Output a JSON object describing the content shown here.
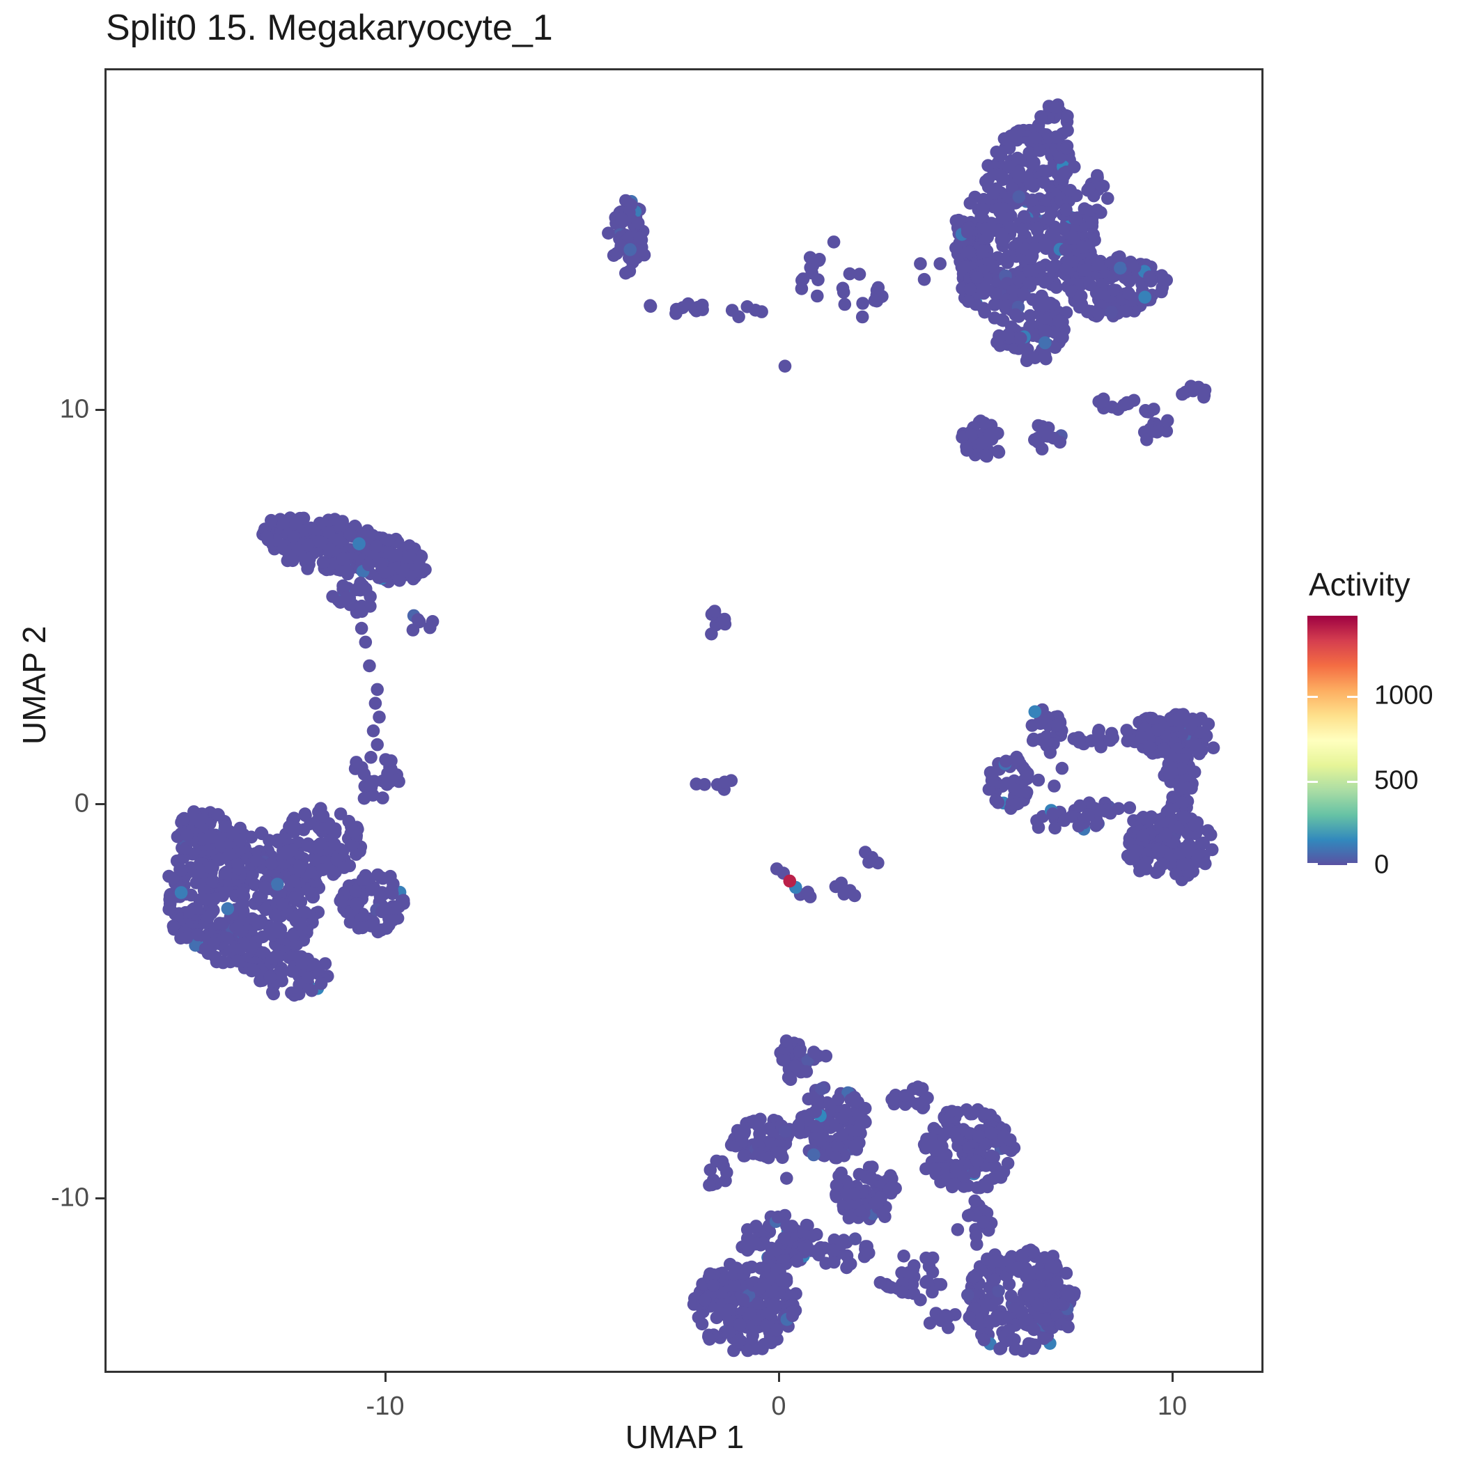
{
  "title": "Split0 15. Megakaryocyte_1",
  "axes": {
    "x_label": "UMAP 1",
    "y_label": "UMAP 2",
    "x_ticks": [
      -10,
      0,
      10
    ],
    "y_ticks": [
      -10,
      0,
      10
    ]
  },
  "legend": {
    "title": "Activity",
    "tick_values": [
      0,
      500,
      1000
    ],
    "domain": [
      0,
      1475
    ],
    "gradient_stops": [
      "#5A51A2",
      "#3288BD",
      "#66C2A5",
      "#ABDDA4",
      "#E6F598",
      "#FFFFBF",
      "#FEE08B",
      "#FDAE61",
      "#F46D43",
      "#D53E4F",
      "#9E0142"
    ]
  },
  "style_colors": {
    "panel_border": "#333333",
    "tick_label": "#4d4d4d",
    "text": "#1a1a1a",
    "default_point": "#5A51A2",
    "high_activity_point": "#A31048"
  },
  "chart_data": {
    "type": "scatter",
    "title": "Split0 15. Megakaryocyte_1",
    "xlabel": "UMAP 1",
    "ylabel": "UMAP 2",
    "xlim": [
      -17.1,
      12.3
    ],
    "ylim": [
      -14.4,
      18.7
    ],
    "x_ticks": [
      -10,
      0,
      10
    ],
    "y_ticks": [
      -10,
      0,
      10
    ],
    "grid": false,
    "legend_position": "right",
    "color_scale": {
      "name": "spectral_reversed",
      "domain": [
        0,
        1475
      ],
      "legend_ticks": [
        0,
        500,
        1000
      ],
      "label": "Activity"
    },
    "point_radius_px": 9.3,
    "seed": 20990,
    "tint_fraction": 0.03,
    "tint_max_activity": 150,
    "jitter": 0.1,
    "clusters": [
      {
        "name": "topright-upper-lobe",
        "cx": 6.3,
        "cy": 15.9,
        "rx": 1.15,
        "ry": 1.35,
        "n": 150,
        "rot": -20
      },
      {
        "name": "topright-mid-left",
        "cx": 5.55,
        "cy": 13.6,
        "rx": 1.05,
        "ry": 1.3,
        "n": 130,
        "rot": 0
      },
      {
        "name": "topright-mid-right",
        "cx": 7.2,
        "cy": 14.0,
        "rx": 1.05,
        "ry": 0.95,
        "n": 90,
        "rot": 0
      },
      {
        "name": "topright-right-lobe",
        "cx": 8.6,
        "cy": 13.1,
        "rx": 1.25,
        "ry": 0.8,
        "n": 120,
        "rot": 10
      },
      {
        "name": "topright-lower",
        "cx": 6.4,
        "cy": 12.1,
        "rx": 0.95,
        "ry": 0.85,
        "n": 80,
        "rot": 0
      },
      {
        "name": "topright-tip",
        "cx": 7.0,
        "cy": 17.1,
        "rx": 0.55,
        "ry": 0.65,
        "n": 25,
        "rot": 0
      },
      {
        "name": "topright-ne-spur",
        "cx": 7.7,
        "cy": 15.4,
        "rx": 0.65,
        "ry": 0.75,
        "n": 40,
        "rot": 0
      },
      {
        "name": "topright-left-edge",
        "cx": 5.0,
        "cy": 14.6,
        "rx": 0.5,
        "ry": 0.8,
        "n": 35,
        "rot": 0
      },
      {
        "name": "sat-triangle",
        "cx": 5.25,
        "cy": 9.2,
        "rx": 0.6,
        "ry": 0.5,
        "n": 35,
        "rot": 0
      },
      {
        "name": "sat-small",
        "cx": 6.8,
        "cy": 9.25,
        "rx": 0.38,
        "ry": 0.42,
        "n": 14,
        "rot": 0
      },
      {
        "name": "sat-chain",
        "cx": 8.5,
        "cy": 10.15,
        "rx": 0.5,
        "ry": 0.15,
        "n": 10,
        "rot": 0
      },
      {
        "name": "sat-clump",
        "cx": 9.5,
        "cy": 9.6,
        "rx": 0.45,
        "ry": 0.4,
        "n": 16,
        "rot": 0
      },
      {
        "name": "sat-far-chain",
        "cx": 10.6,
        "cy": 10.4,
        "rx": 0.5,
        "ry": 0.14,
        "n": 9,
        "rot": -8
      },
      {
        "name": "topmid-blob",
        "cx": -3.85,
        "cy": 14.4,
        "rx": 0.5,
        "ry": 1.0,
        "n": 55,
        "rot": 0
      },
      {
        "name": "topmid-chain",
        "cx": -2.55,
        "cy": 12.6,
        "rx": 0.8,
        "ry": 0.13,
        "n": 11,
        "rot": 0
      },
      {
        "name": "topmid-pair",
        "cx": -0.85,
        "cy": 12.5,
        "rx": 0.38,
        "ry": 0.22,
        "n": 5,
        "rot": 0
      },
      {
        "name": "topmid-right1",
        "cx": 0.9,
        "cy": 13.3,
        "rx": 0.55,
        "ry": 0.6,
        "n": 11,
        "rot": 0
      },
      {
        "name": "topmid-right2",
        "cx": 2.0,
        "cy": 12.9,
        "rx": 0.65,
        "ry": 0.6,
        "n": 13,
        "rot": 0
      },
      {
        "name": "topleft-ellipse",
        "cx": -11.05,
        "cy": 6.45,
        "rx": 2.15,
        "ry": 0.7,
        "n": 260,
        "rot": -12
      },
      {
        "name": "topleft-tail",
        "cx": -10.85,
        "cy": 5.2,
        "rx": 0.5,
        "ry": 0.45,
        "n": 25,
        "rot": 0
      },
      {
        "name": "topleft-pair",
        "cx": -9.2,
        "cy": 4.55,
        "rx": 0.4,
        "ry": 0.28,
        "n": 6,
        "rot": 0
      },
      {
        "name": "neck-clump",
        "cx": -10.25,
        "cy": 0.7,
        "rx": 0.6,
        "ry": 0.6,
        "n": 30,
        "rot": 0
      },
      {
        "name": "botleft-main",
        "cx": -13.6,
        "cy": -2.4,
        "rx": 1.95,
        "ry": 1.75,
        "n": 420,
        "rot": 0
      },
      {
        "name": "botleft-ne",
        "cx": -11.6,
        "cy": -1.0,
        "rx": 1.05,
        "ry": 0.85,
        "n": 90,
        "rot": 0
      },
      {
        "name": "botleft-east",
        "cx": -10.3,
        "cy": -2.5,
        "rx": 0.85,
        "ry": 0.75,
        "n": 80,
        "rot": 0
      },
      {
        "name": "botleft-nw",
        "cx": -14.5,
        "cy": -0.7,
        "rx": 0.85,
        "ry": 0.55,
        "n": 50,
        "rot": 0
      },
      {
        "name": "botleft-south",
        "cx": -12.4,
        "cy": -4.35,
        "rx": 1.05,
        "ry": 0.55,
        "n": 60,
        "rot": 0
      },
      {
        "name": "center-clump",
        "cx": -1.6,
        "cy": 4.6,
        "rx": 0.3,
        "ry": 0.33,
        "n": 9,
        "rot": 0
      },
      {
        "name": "center-chain",
        "cx": -1.45,
        "cy": 0.5,
        "rx": 0.65,
        "ry": 0.13,
        "n": 6,
        "rot": 0
      },
      {
        "name": "ring-left-blob",
        "cx": 5.9,
        "cy": 0.55,
        "rx": 0.55,
        "ry": 0.65,
        "n": 45,
        "rot": 0
      },
      {
        "name": "ring-topleft",
        "cx": 6.8,
        "cy": 1.9,
        "rx": 0.45,
        "ry": 0.5,
        "n": 25,
        "rot": 0
      },
      {
        "name": "ring-top-chain",
        "cx": 8.3,
        "cy": 1.7,
        "rx": 0.95,
        "ry": 0.22,
        "n": 18,
        "rot": 0
      },
      {
        "name": "ring-topright",
        "cx": 10.1,
        "cy": 1.7,
        "rx": 1.0,
        "ry": 0.6,
        "n": 110,
        "rot": -8
      },
      {
        "name": "ring-right",
        "cx": 10.25,
        "cy": 0.5,
        "rx": 0.5,
        "ry": 0.65,
        "n": 40,
        "rot": 0
      },
      {
        "name": "ring-botright",
        "cx": 9.9,
        "cy": -1.05,
        "rx": 1.1,
        "ry": 0.9,
        "n": 150,
        "rot": 0
      },
      {
        "name": "ring-bot-chain",
        "cx": 7.7,
        "cy": -0.3,
        "rx": 1.25,
        "ry": 0.32,
        "n": 35,
        "rot": 8
      },
      {
        "name": "bottom-top-clump",
        "cx": 0.45,
        "cy": -6.5,
        "rx": 0.55,
        "ry": 0.55,
        "n": 30,
        "rot": 0
      },
      {
        "name": "bottom-upper-mid",
        "cx": 1.35,
        "cy": -8.1,
        "rx": 0.9,
        "ry": 0.95,
        "n": 110,
        "rot": 0
      },
      {
        "name": "bottom-left-clump",
        "cx": -0.4,
        "cy": -8.5,
        "rx": 0.8,
        "ry": 0.6,
        "n": 60,
        "rot": 0
      },
      {
        "name": "bottom-left-pair",
        "cx": -1.5,
        "cy": -9.45,
        "rx": 0.32,
        "ry": 0.5,
        "n": 10,
        "rot": 0
      },
      {
        "name": "bottom-mid",
        "cx": 2.2,
        "cy": -9.9,
        "rx": 0.95,
        "ry": 0.7,
        "n": 70,
        "rot": 0
      },
      {
        "name": "bottom-small-top",
        "cx": 3.3,
        "cy": -7.45,
        "rx": 0.6,
        "ry": 0.32,
        "n": 18,
        "rot": 0
      },
      {
        "name": "bottom-right-upper",
        "cx": 4.8,
        "cy": -8.8,
        "rx": 1.15,
        "ry": 1.05,
        "n": 150,
        "rot": 0
      },
      {
        "name": "bottom-leftmid-blob",
        "cx": 0.0,
        "cy": -11.1,
        "rx": 1.0,
        "ry": 0.65,
        "n": 70,
        "rot": 0
      },
      {
        "name": "bottom-bigleft",
        "cx": -0.85,
        "cy": -12.75,
        "rx": 1.35,
        "ry": 1.15,
        "n": 200,
        "rot": 0
      },
      {
        "name": "bottom-bigright",
        "cx": 6.15,
        "cy": -12.6,
        "rx": 1.4,
        "ry": 1.35,
        "n": 220,
        "rot": 0
      },
      {
        "name": "bottom-bridge",
        "cx": 5.0,
        "cy": -10.6,
        "rx": 0.45,
        "ry": 0.55,
        "n": 20,
        "rot": 0
      },
      {
        "name": "bottom-mid-scatter",
        "cx": 3.4,
        "cy": -12.0,
        "rx": 0.85,
        "ry": 0.6,
        "n": 28,
        "rot": 0
      },
      {
        "name": "bottom-chain",
        "cx": 4.3,
        "cy": -13.1,
        "rx": 0.65,
        "ry": 0.22,
        "n": 10,
        "rot": 0
      },
      {
        "name": "bottom-mid-sparse",
        "cx": 1.6,
        "cy": -11.4,
        "rx": 0.75,
        "ry": 0.5,
        "n": 22,
        "rot": 0
      }
    ],
    "singles": [
      [
        3.6,
        13.7
      ],
      [
        4.1,
        13.7
      ],
      [
        3.7,
        13.3
      ],
      [
        4.5,
        14.1
      ],
      [
        4.8,
        14.5
      ],
      [
        1.4,
        14.25
      ],
      [
        0.16,
        11.1
      ],
      [
        -10.6,
        4.45
      ],
      [
        -10.5,
        4.1
      ],
      [
        -10.4,
        3.5
      ],
      [
        -10.2,
        2.9
      ],
      [
        -10.25,
        2.55
      ],
      [
        -10.15,
        2.2
      ],
      [
        -10.3,
        1.85
      ],
      [
        -10.2,
        1.5
      ],
      [
        6.9,
        1.3
      ],
      [
        7.2,
        0.9
      ],
      [
        7.0,
        0.45
      ],
      [
        6.6,
        0.6
      ],
      [
        -0.05,
        -1.65
      ],
      [
        0.12,
        -1.76
      ],
      [
        0.55,
        -2.3
      ],
      [
        0.74,
        -2.24
      ],
      [
        0.8,
        -2.36
      ],
      [
        1.45,
        -2.1
      ],
      [
        1.59,
        -2.01
      ],
      [
        1.81,
        -2.2
      ],
      [
        1.93,
        -2.33
      ],
      [
        1.66,
        -2.29
      ],
      [
        2.2,
        -1.23
      ],
      [
        2.37,
        -1.36
      ],
      [
        2.52,
        -1.5
      ],
      [
        2.29,
        -1.48
      ],
      [
        1.2,
        -6.4
      ],
      [
        0.2,
        -9.5
      ],
      [
        4.4,
        -7.8
      ],
      [
        2.9,
        -7.5
      ]
    ],
    "special_points": [
      {
        "x": 0.43,
        "y": -2.12,
        "activity": 130,
        "note": "slightly-blue point"
      },
      {
        "x": 0.28,
        "y": -1.96,
        "activity": 1400,
        "note": "high activity megakaryocyte cell"
      }
    ]
  }
}
